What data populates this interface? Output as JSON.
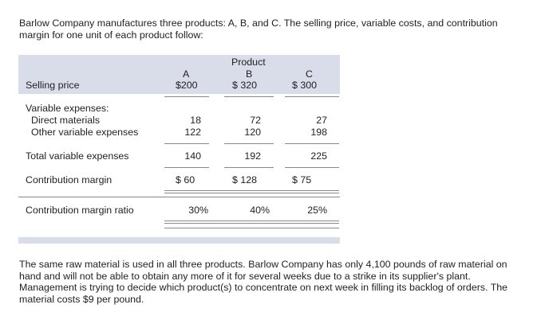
{
  "intro": "Barlow Company manufactures three products: A, B, and C. The selling price, variable costs, and contribution margin for one unit of each product follow:",
  "table": {
    "group_header": "Product",
    "columns": [
      "A",
      "B",
      "C"
    ],
    "selling_price": {
      "label": "Selling price",
      "values": [
        "$200",
        "$ 320",
        "$ 300"
      ]
    },
    "variable_expenses_label": "Variable expenses:",
    "direct_materials": {
      "label": "Direct materials",
      "values": [
        "18",
        "72",
        "27"
      ]
    },
    "other_variable": {
      "label": "Other variable expenses",
      "values": [
        "122",
        "120",
        "198"
      ]
    },
    "total_variable": {
      "label": "Total variable expenses",
      "values": [
        "140",
        "192",
        "225"
      ]
    },
    "contribution_margin": {
      "label": "Contribution margin",
      "values": [
        "$ 60",
        "$ 128",
        "$  75"
      ]
    },
    "cm_ratio": {
      "label": "Contribution margin ratio",
      "values": [
        "30%",
        "40%",
        "25%"
      ]
    }
  },
  "outro": "The same raw material is used in all three products. Barlow Company has only 4,100 pounds of raw material on hand and will not be able to obtain any more of it for several weeks due to a strike in its supplier's plant. Management is trying to decide which product(s) to concentrate on next week in filling its backlog of orders. The material costs $9 per pound."
}
